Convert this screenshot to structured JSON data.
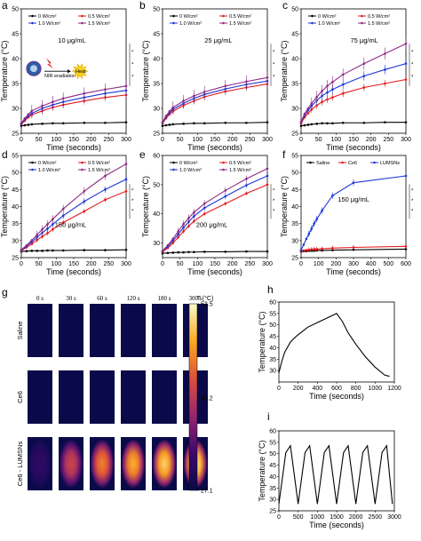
{
  "colors": {
    "c0": "#000000",
    "c05": "#e41a1c",
    "c10": "#1c36d6",
    "c15": "#8e2a85",
    "saline": "#000000",
    "ce6": "#e41a1c",
    "lumsn": "#1c36d6",
    "thermal_bg": "#0a0a4a"
  },
  "legend_power": [
    "0 W/cm²",
    "0.5 W/cm²",
    "1.0 W/cm²",
    "1.5 W/cm²"
  ],
  "legend_f": [
    "Saline",
    "Ce6",
    "LUMSNs"
  ],
  "inset_a": {
    "nir_label": "NIR eradiation",
    "heat_label": "Heat"
  },
  "chart_data": [
    {
      "panel": "a",
      "type": "line",
      "annotation": "10 μg/mL",
      "xlabel": "Time (seconds)",
      "ylabel": "Temperature (°C)",
      "xlim": [
        0,
        300
      ],
      "ylim": [
        25,
        50
      ],
      "xticks": [
        0,
        50,
        100,
        150,
        200,
        250,
        300
      ],
      "yticks": [
        25,
        30,
        35,
        40,
        45,
        50
      ],
      "x": [
        0,
        10,
        20,
        30,
        60,
        90,
        120,
        180,
        240,
        300
      ],
      "series": [
        {
          "name": "0 W/cm²",
          "color_key": "c0",
          "values": [
            26.5,
            26.6,
            26.7,
            26.8,
            26.9,
            27.0,
            27.0,
            27.1,
            27.1,
            27.2
          ]
        },
        {
          "name": "0.5 W/cm²",
          "color_key": "c05",
          "values": [
            26.8,
            27.5,
            28.2,
            28.7,
            29.5,
            30.2,
            30.7,
            31.5,
            32.2,
            32.7
          ]
        },
        {
          "name": "1.0 W/cm²",
          "color_key": "c10",
          "values": [
            26.9,
            27.8,
            28.5,
            29.0,
            30.0,
            30.7,
            31.3,
            32.2,
            33.0,
            33.6
          ]
        },
        {
          "name": "1.5 W/cm²",
          "color_key": "c15",
          "values": [
            27.0,
            28.0,
            28.8,
            29.5,
            30.5,
            31.3,
            32.0,
            33.0,
            33.8,
            34.5
          ]
        }
      ],
      "significance": [
        "*",
        "*",
        "*"
      ]
    },
    {
      "panel": "b",
      "type": "line",
      "annotation": "25 μg/mL",
      "xlabel": "Time (seconds)",
      "ylabel": "Temperature (°C)",
      "xlim": [
        0,
        300
      ],
      "ylim": [
        25,
        50
      ],
      "xticks": [
        0,
        50,
        100,
        150,
        200,
        250,
        300
      ],
      "yticks": [
        25,
        30,
        35,
        40,
        45,
        50
      ],
      "x": [
        0,
        10,
        20,
        30,
        60,
        90,
        120,
        180,
        240,
        300
      ],
      "series": [
        {
          "name": "0 W/cm²",
          "color_key": "c0",
          "values": [
            26.5,
            26.6,
            26.7,
            26.8,
            26.9,
            27.0,
            27.0,
            27.1,
            27.1,
            27.2
          ]
        },
        {
          "name": "0.5 W/cm²",
          "color_key": "c05",
          "values": [
            27.0,
            28.0,
            28.8,
            29.4,
            30.6,
            31.5,
            32.3,
            33.4,
            34.2,
            34.9
          ]
        },
        {
          "name": "1.0 W/cm²",
          "color_key": "c10",
          "values": [
            27.1,
            28.3,
            29.1,
            29.8,
            31.0,
            32.0,
            32.8,
            33.9,
            34.8,
            35.5
          ]
        },
        {
          "name": "1.5 W/cm²",
          "color_key": "c15",
          "values": [
            27.2,
            28.5,
            29.4,
            30.2,
            31.5,
            32.5,
            33.3,
            34.5,
            35.4,
            36.2
          ]
        }
      ],
      "significance": [
        "*",
        "*",
        "*"
      ]
    },
    {
      "panel": "c",
      "type": "line",
      "annotation": "75 μg/mL",
      "xlabel": "Time (seconds)",
      "ylabel": "Temperature (°C)",
      "xlim": [
        0,
        300
      ],
      "ylim": [
        25,
        50
      ],
      "xticks": [
        0,
        50,
        100,
        150,
        200,
        250,
        300
      ],
      "yticks": [
        25,
        30,
        35,
        40,
        45,
        50
      ],
      "x": [
        0,
        10,
        20,
        30,
        45,
        60,
        75,
        90,
        120,
        180,
        240,
        300
      ],
      "series": [
        {
          "name": "0 W/cm²",
          "color_key": "c0",
          "values": [
            26.5,
            26.6,
            26.7,
            26.8,
            26.9,
            27.0,
            27.0,
            27.0,
            27.1,
            27.1,
            27.2,
            27.2
          ]
        },
        {
          "name": "0.5 W/cm²",
          "color_key": "c05",
          "values": [
            27.0,
            28.2,
            29.0,
            29.8,
            30.6,
            31.3,
            31.8,
            32.2,
            33.0,
            34.2,
            35.0,
            35.8
          ]
        },
        {
          "name": "1.0 W/cm²",
          "color_key": "c10",
          "values": [
            27.2,
            28.6,
            29.6,
            30.5,
            31.6,
            32.5,
            33.2,
            33.8,
            34.8,
            36.5,
            37.8,
            39.0
          ]
        },
        {
          "name": "1.5 W/cm²",
          "color_key": "c15",
          "values": [
            27.3,
            28.9,
            30.0,
            31.0,
            32.3,
            33.5,
            34.5,
            35.3,
            36.8,
            39.0,
            41.0,
            43.0
          ]
        }
      ],
      "significance": [
        "*",
        "*",
        "*"
      ]
    },
    {
      "panel": "d",
      "type": "line",
      "annotation": "150 μg/mL",
      "xlabel": "Time (seconds)",
      "ylabel": "Temperature (°C)",
      "xlim": [
        0,
        300
      ],
      "ylim": [
        25,
        55
      ],
      "xticks": [
        0,
        50,
        100,
        150,
        200,
        250,
        300
      ],
      "yticks": [
        25,
        30,
        35,
        40,
        45,
        50,
        55
      ],
      "x": [
        0,
        15,
        30,
        45,
        60,
        75,
        90,
        120,
        180,
        240,
        300
      ],
      "series": [
        {
          "name": "0 W/cm²",
          "color_key": "c0",
          "values": [
            26.8,
            26.9,
            27.0,
            27.0,
            27.0,
            27.1,
            27.1,
            27.1,
            27.2,
            27.2,
            27.3
          ]
        },
        {
          "name": "0.5 W/cm²",
          "color_key": "c05",
          "values": [
            27.0,
            28.0,
            29.0,
            30.2,
            31.2,
            32.2,
            33.3,
            35.3,
            38.6,
            42.0,
            44.5
          ]
        },
        {
          "name": "1.0 W/cm²",
          "color_key": "c10",
          "values": [
            27.2,
            28.3,
            29.6,
            31.0,
            32.3,
            33.5,
            34.8,
            37.3,
            41.5,
            45.0,
            48.0
          ]
        },
        {
          "name": "1.5 W/cm²",
          "color_key": "c15",
          "values": [
            27.3,
            28.6,
            30.1,
            31.7,
            33.3,
            34.8,
            36.3,
            39.3,
            44.5,
            49.0,
            52.5
          ]
        }
      ],
      "significance": [
        "*",
        "*",
        "*"
      ]
    },
    {
      "panel": "e",
      "type": "line",
      "annotation": "200 μg/mL",
      "xlabel": "Time (seconds)",
      "ylabel": "Temperature (°C)",
      "xlim": [
        0,
        300
      ],
      "ylim": [
        25,
        60
      ],
      "xticks": [
        0,
        50,
        100,
        150,
        200,
        250,
        300
      ],
      "yticks": [
        30,
        40,
        50,
        60
      ],
      "x": [
        0,
        15,
        30,
        45,
        60,
        75,
        90,
        120,
        180,
        240,
        300
      ],
      "series": [
        {
          "name": "0 W/cm²",
          "color_key": "c0",
          "values": [
            26.5,
            26.6,
            26.7,
            26.8,
            26.8,
            26.9,
            26.9,
            27.0,
            27.0,
            27.1,
            27.1
          ]
        },
        {
          "name": "0.5 W/cm²",
          "color_key": "c05",
          "values": [
            27.0,
            28.3,
            30.0,
            32.0,
            34.0,
            35.8,
            37.5,
            40.0,
            43.5,
            47.0,
            50.0
          ]
        },
        {
          "name": "1.0 W/cm²",
          "color_key": "c10",
          "values": [
            27.2,
            28.8,
            30.8,
            33.0,
            35.3,
            37.3,
            39.2,
            42.0,
            46.0,
            49.8,
            53.0
          ]
        },
        {
          "name": "1.5 W/cm²",
          "color_key": "c15",
          "values": [
            27.3,
            29.2,
            31.5,
            34.0,
            36.5,
            38.6,
            40.5,
            43.5,
            48.0,
            52.0,
            55.5
          ]
        }
      ],
      "significance": [
        "*",
        "*",
        "*"
      ]
    },
    {
      "panel": "f",
      "type": "line",
      "annotation": "150 μg/mL",
      "xlabel": "Time (seconds)",
      "ylabel": "Temperature (°C)",
      "xlim": [
        0,
        600
      ],
      "ylim": [
        25,
        55
      ],
      "xticks": [
        0,
        100,
        200,
        300,
        400,
        500,
        600
      ],
      "yticks": [
        25,
        30,
        35,
        40,
        45,
        50,
        55
      ],
      "x": [
        0,
        15,
        30,
        45,
        60,
        75,
        90,
        120,
        180,
        300,
        600
      ],
      "series": [
        {
          "name": "Saline",
          "color_key": "saline",
          "values": [
            26.8,
            26.9,
            26.9,
            27.0,
            27.0,
            27.0,
            27.1,
            27.1,
            27.2,
            27.3,
            27.5
          ]
        },
        {
          "name": "Ce6",
          "color_key": "ce6",
          "values": [
            27.0,
            27.1,
            27.2,
            27.3,
            27.4,
            27.5,
            27.5,
            27.6,
            27.8,
            28.0,
            28.3
          ]
        },
        {
          "name": "LUMSNs",
          "color_key": "lumsn",
          "values": [
            27.2,
            28.8,
            30.5,
            32.0,
            33.5,
            35.0,
            36.3,
            38.8,
            43.2,
            47.0,
            49.0
          ]
        }
      ],
      "significance": [
        "*",
        "*",
        "*"
      ]
    },
    {
      "panel": "g",
      "type": "heatmap",
      "time_labels": [
        "0 s",
        "30 s",
        "60 s",
        "120 s",
        "180 s",
        "300 s"
      ],
      "row_labels": [
        "Saline",
        "Ce6",
        "Ce6 - LUMSNs"
      ],
      "colorbar_title": "T (°C)",
      "colorbar_ticks": [
        "53.5",
        "40.2",
        "27.1"
      ],
      "colorbar_range": [
        27.1,
        53.5
      ],
      "cell_intensity": [
        [
          0,
          0,
          0,
          0,
          0,
          0
        ],
        [
          0,
          0,
          0,
          0,
          0,
          0
        ],
        [
          0.15,
          0.55,
          0.72,
          0.82,
          0.9,
          0.97
        ]
      ]
    },
    {
      "panel": "h",
      "type": "line",
      "xlabel": "Time (seconds)",
      "ylabel": "Temperature (°C)",
      "xlim": [
        0,
        1200
      ],
      "ylim": [
        25,
        60
      ],
      "xticks": [
        0,
        200,
        400,
        600,
        800,
        1000,
        1200
      ],
      "yticks": [
        30,
        35,
        40,
        45,
        50,
        55,
        60
      ],
      "x": [
        0,
        30,
        60,
        120,
        180,
        240,
        300,
        400,
        500,
        600,
        660,
        720,
        800,
        900,
        1000,
        1100,
        1150
      ],
      "series": [
        {
          "name": "",
          "color_key": "c0",
          "values": [
            29.0,
            34.0,
            38.0,
            42.5,
            45.0,
            47.0,
            49.0,
            51.0,
            53.0,
            55.0,
            51.5,
            46.5,
            41.5,
            36.0,
            31.5,
            28.0,
            27.5
          ]
        }
      ]
    },
    {
      "panel": "i",
      "type": "line",
      "xlabel": "Time (seconds)",
      "ylabel": "Temperature (°C)",
      "xlim": [
        0,
        3000
      ],
      "ylim": [
        25,
        60
      ],
      "xticks": [
        0,
        500,
        1000,
        1500,
        2000,
        2500,
        3000
      ],
      "yticks": [
        25,
        30,
        35,
        40,
        45,
        50,
        55,
        60
      ],
      "x": [
        0,
        180,
        300,
        500,
        680,
        800,
        1000,
        1180,
        1300,
        1500,
        1680,
        1800,
        2000,
        2180,
        2300,
        2500,
        2680,
        2800,
        2950
      ],
      "series": [
        {
          "name": "",
          "color_key": "c0",
          "values": [
            28.0,
            50.5,
            53.5,
            28.0,
            50.5,
            53.5,
            28.0,
            50.5,
            53.5,
            28.0,
            50.5,
            53.5,
            28.0,
            50.5,
            53.5,
            28.0,
            50.5,
            53.5,
            28.0
          ]
        }
      ]
    }
  ]
}
